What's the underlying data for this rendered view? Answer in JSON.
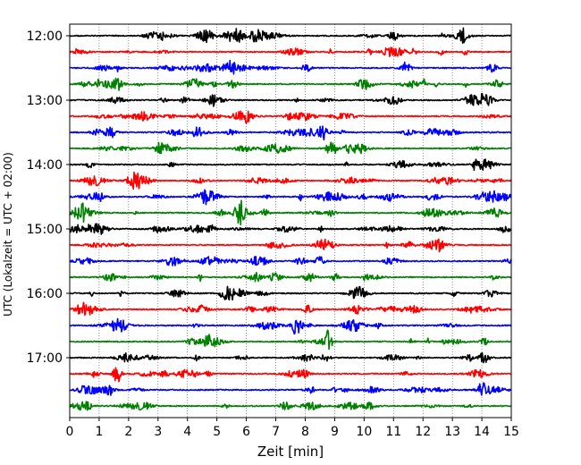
{
  "chart_data": {
    "type": "line",
    "subtype": "helicorder",
    "title": "",
    "xlabel": "Zeit  [min]",
    "ylabel": "UTC (Lokalzeit = UTC + 02:00)",
    "xlim": [
      0,
      15
    ],
    "xticks": [
      0,
      1,
      2,
      3,
      4,
      5,
      6,
      7,
      8,
      9,
      10,
      11,
      12,
      13,
      14,
      15
    ],
    "yticks": [
      "12:00",
      "13:00",
      "14:00",
      "15:00",
      "16:00",
      "17:00"
    ],
    "grid": "vertical dotted at each minute",
    "legend": "none",
    "trace_colors": [
      "#000000",
      "#ff0000",
      "#0000ff",
      "#008000"
    ],
    "series": [
      {
        "start": "12:00",
        "color": "#000000"
      },
      {
        "start": "12:15",
        "color": "#ff0000"
      },
      {
        "start": "12:30",
        "color": "#0000ff"
      },
      {
        "start": "12:45",
        "color": "#008000"
      },
      {
        "start": "13:00",
        "color": "#000000"
      },
      {
        "start": "13:15",
        "color": "#ff0000"
      },
      {
        "start": "13:30",
        "color": "#0000ff"
      },
      {
        "start": "13:45",
        "color": "#008000"
      },
      {
        "start": "14:00",
        "color": "#000000"
      },
      {
        "start": "14:15",
        "color": "#ff0000"
      },
      {
        "start": "14:30",
        "color": "#0000ff"
      },
      {
        "start": "14:45",
        "color": "#008000"
      },
      {
        "start": "15:00",
        "color": "#000000"
      },
      {
        "start": "15:15",
        "color": "#ff0000"
      },
      {
        "start": "15:30",
        "color": "#0000ff"
      },
      {
        "start": "15:45",
        "color": "#008000"
      },
      {
        "start": "16:00",
        "color": "#000000"
      },
      {
        "start": "16:15",
        "color": "#ff0000"
      },
      {
        "start": "16:30",
        "color": "#0000ff"
      },
      {
        "start": "16:45",
        "color": "#008000"
      },
      {
        "start": "17:00",
        "color": "#000000"
      },
      {
        "start": "17:15",
        "color": "#ff0000"
      },
      {
        "start": "17:30",
        "color": "#0000ff"
      },
      {
        "start": "17:45",
        "color": "#008000"
      }
    ],
    "events": [
      {
        "start": "14:45",
        "minute": 5.8,
        "amplitude": 1.0
      },
      {
        "start": "16:30",
        "minute": 7.7,
        "amplitude": 0.85
      },
      {
        "start": "16:45",
        "minute": 8.8,
        "amplitude": 1.05
      },
      {
        "start": "17:15",
        "minute": 1.6,
        "amplitude": 0.95
      },
      {
        "start": "17:30",
        "minute": 14.0,
        "amplitude": 0.75
      },
      {
        "start": "13:30",
        "minute": 8.6,
        "amplitude": 0.7
      },
      {
        "start": "12:30",
        "minute": 5.5,
        "amplitude": 0.6
      },
      {
        "start": "12:00",
        "minute": 13.4,
        "amplitude": 0.55
      }
    ]
  }
}
